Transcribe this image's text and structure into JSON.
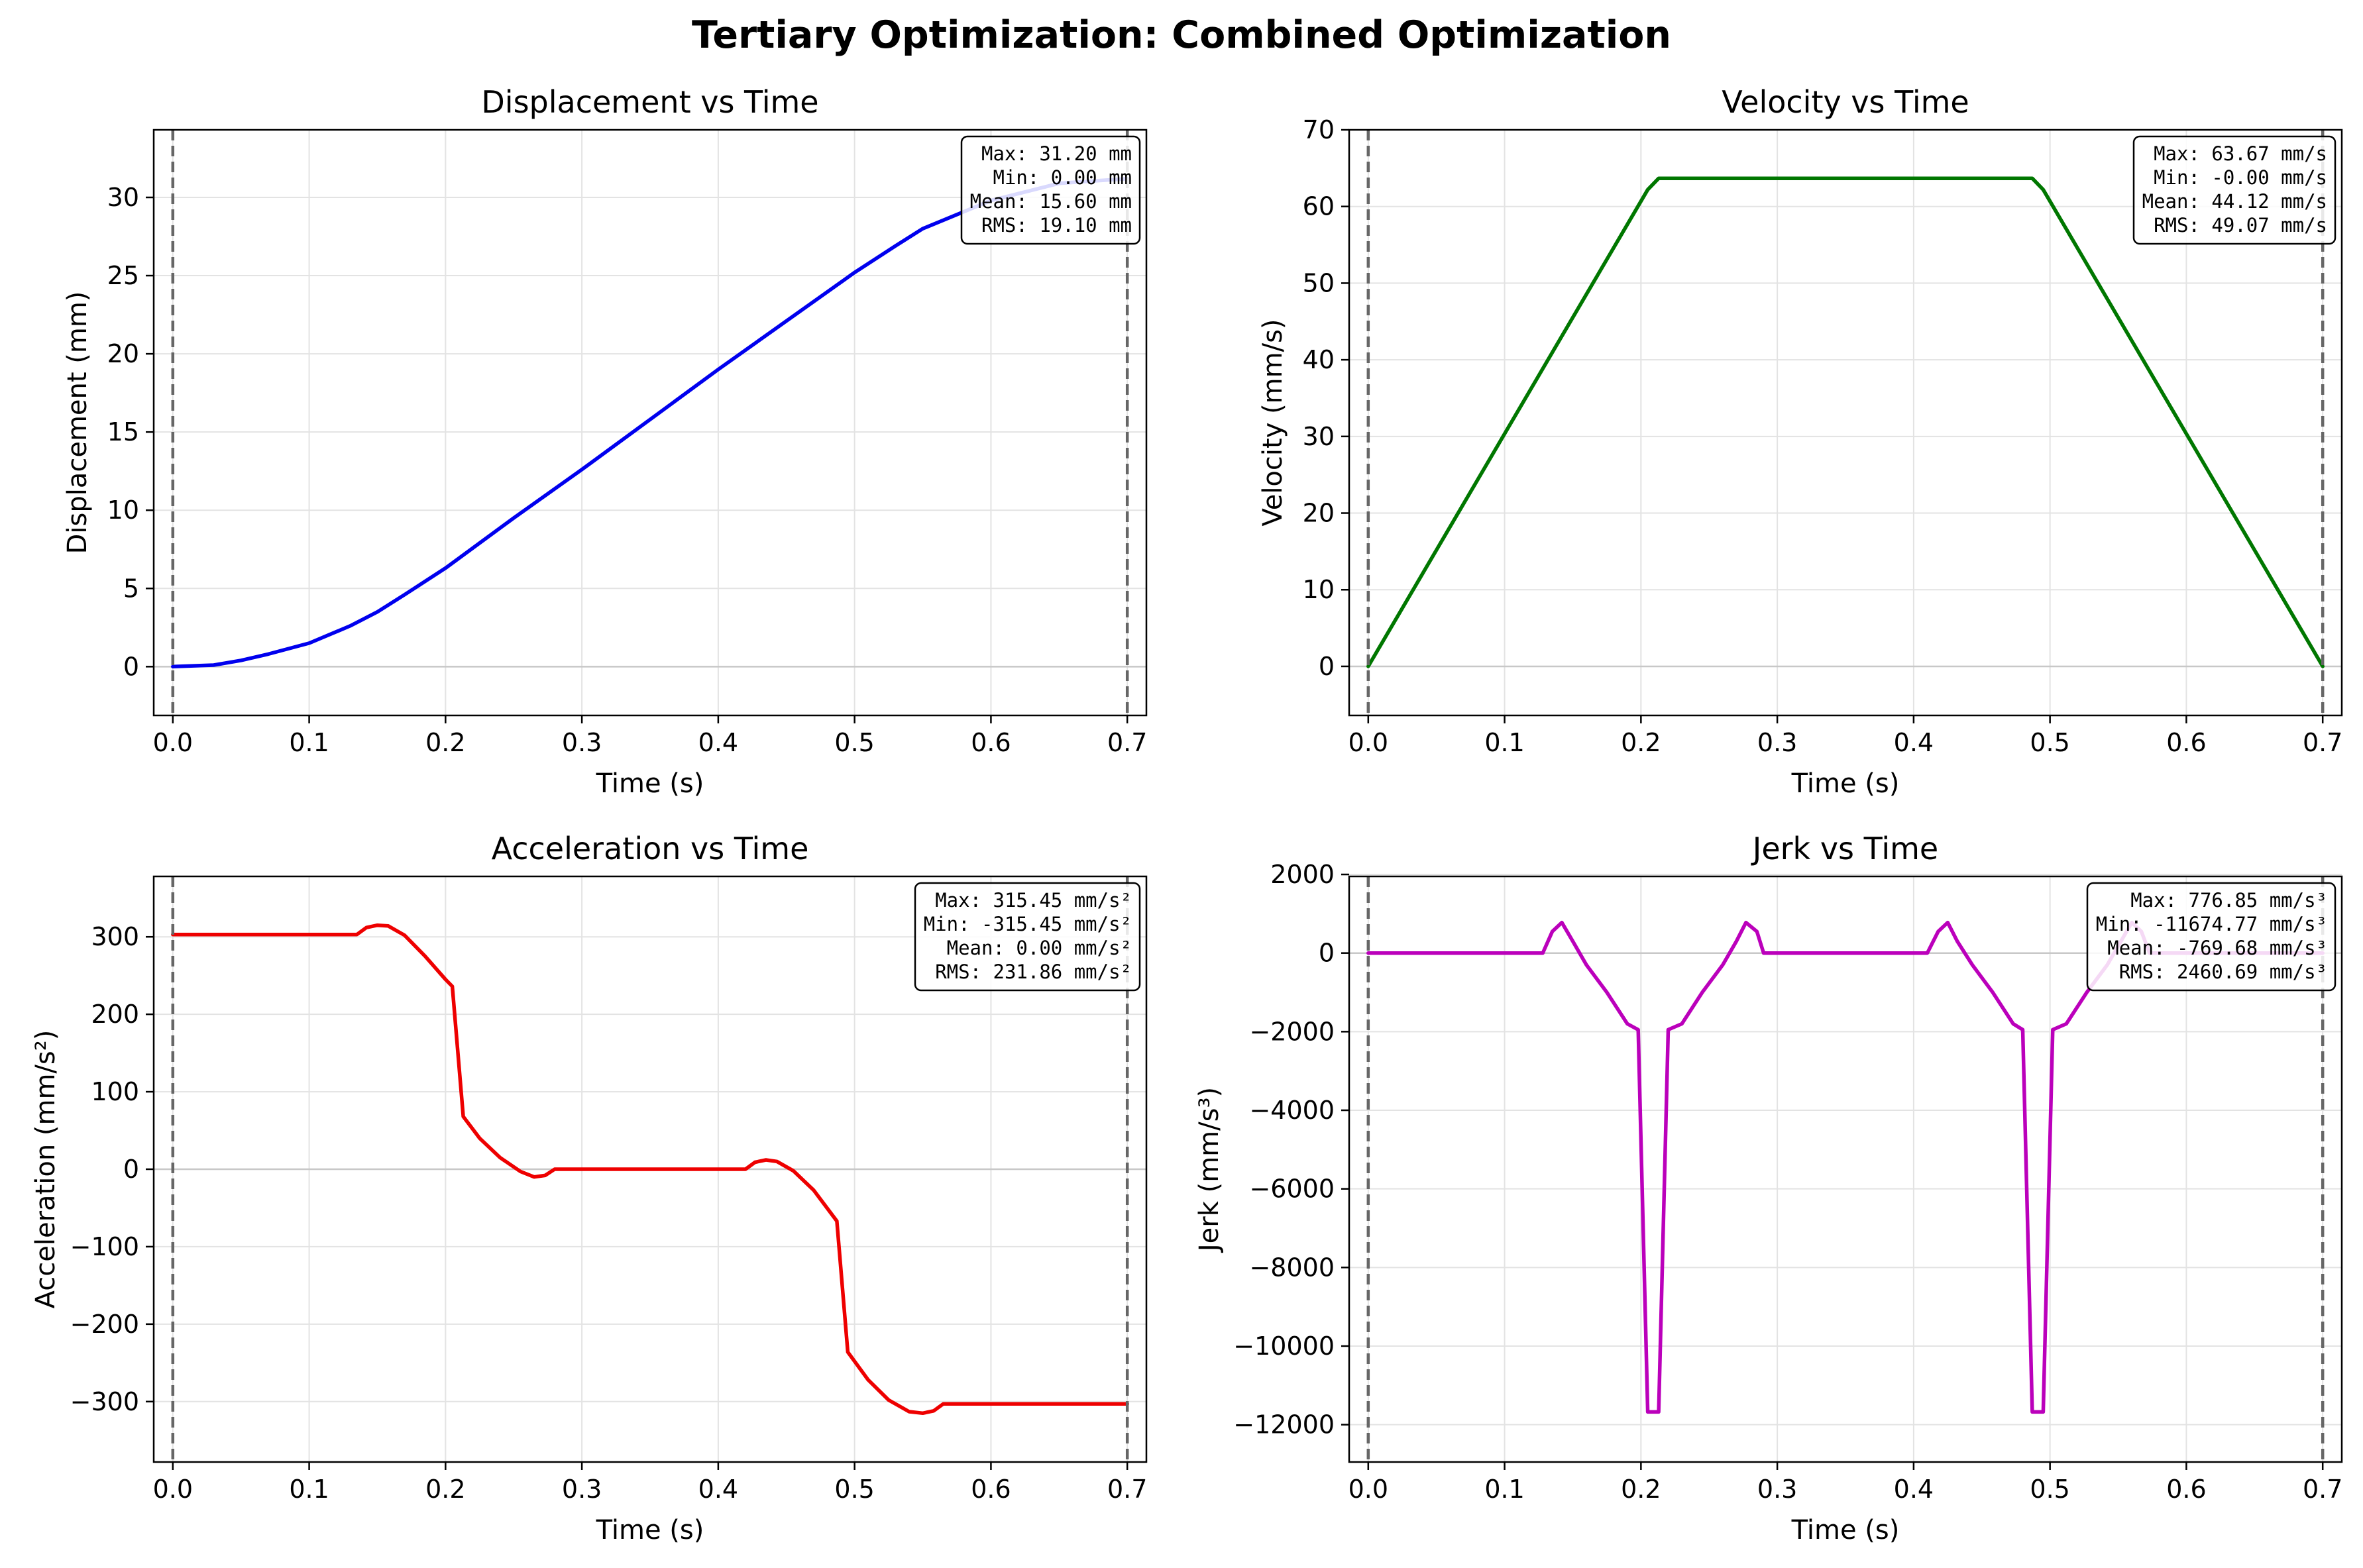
{
  "figure": {
    "title": "Tertiary Optimization: Combined Optimization"
  },
  "chart_data": [
    {
      "type": "line",
      "title": "Displacement vs Time",
      "xlabel": "Time (s)",
      "ylabel": "Displacement (mm)",
      "xlim": [
        -0.014,
        0.714
      ],
      "ylim": [
        -3.12,
        34.32
      ],
      "xticks": [
        0.0,
        0.1,
        0.2,
        0.3,
        0.4,
        0.5,
        0.6,
        0.7
      ],
      "xticklabels": [
        "0.0",
        "0.1",
        "0.2",
        "0.3",
        "0.4",
        "0.5",
        "0.6",
        "0.7"
      ],
      "yticks": [
        0,
        5,
        10,
        15,
        20,
        25,
        30
      ],
      "yticklabels": [
        "0",
        "5",
        "10",
        "15",
        "20",
        "25",
        "30"
      ],
      "grid": true,
      "color": "#0000ee",
      "vlines": [
        0.0,
        0.7
      ],
      "hline": 0,
      "stats": [
        "Max: 31.20 mm",
        "Min: 0.00 mm",
        "Mean: 15.60 mm",
        "RMS: 19.10 mm"
      ],
      "series": [
        {
          "x": [
            0,
            0.03,
            0.05,
            0.07,
            0.1,
            0.13,
            0.15,
            0.17,
            0.2,
            0.25,
            0.3,
            0.35,
            0.4,
            0.45,
            0.5,
            0.53,
            0.55,
            0.6,
            0.65,
            0.7
          ],
          "y": [
            0,
            0.1,
            0.4,
            0.8,
            1.5,
            2.6,
            3.5,
            4.6,
            6.3,
            9.5,
            12.6,
            15.8,
            19.0,
            22.1,
            25.2,
            26.9,
            28.0,
            29.8,
            30.9,
            31.2
          ]
        }
      ]
    },
    {
      "type": "line",
      "title": "Velocity vs Time",
      "xlabel": "Time (s)",
      "ylabel": "Velocity (mm/s)",
      "xlim": [
        -0.014,
        0.714
      ],
      "ylim": [
        -6.4,
        70
      ],
      "xticks": [
        0.0,
        0.1,
        0.2,
        0.3,
        0.4,
        0.5,
        0.6,
        0.7
      ],
      "xticklabels": [
        "0.0",
        "0.1",
        "0.2",
        "0.3",
        "0.4",
        "0.5",
        "0.6",
        "0.7"
      ],
      "yticks": [
        0,
        10,
        20,
        30,
        40,
        50,
        60,
        70
      ],
      "yticklabels": [
        "0",
        "10",
        "20",
        "30",
        "40",
        "50",
        "60",
        "70"
      ],
      "grid": true,
      "color": "#007700",
      "vlines": [
        0.0,
        0.7
      ],
      "hline": 0,
      "stats": [
        "Max: 63.67 mm/s",
        "Min: -0.00 mm/s",
        "Mean: 44.12 mm/s",
        "RMS: 49.07 mm/s"
      ],
      "series": [
        {
          "x": [
            0,
            0.205,
            0.213,
            0.487,
            0.495,
            0.7
          ],
          "y": [
            0,
            62.2,
            63.67,
            63.67,
            62.2,
            0
          ]
        }
      ]
    },
    {
      "type": "line",
      "title": "Acceleration vs Time",
      "xlabel": "Time (s)",
      "ylabel": "Acceleration (mm/s²)",
      "xlim": [
        -0.014,
        0.714
      ],
      "ylim": [
        -378,
        378
      ],
      "xticks": [
        0.0,
        0.1,
        0.2,
        0.3,
        0.4,
        0.5,
        0.6,
        0.7
      ],
      "xticklabels": [
        "0.0",
        "0.1",
        "0.2",
        "0.3",
        "0.4",
        "0.5",
        "0.6",
        "0.7"
      ],
      "yticks": [
        -300,
        -200,
        -100,
        0,
        100,
        200,
        300
      ],
      "yticklabels": [
        "−300",
        "−200",
        "−100",
        "0",
        "100",
        "200",
        "300"
      ],
      "grid": true,
      "color": "#ee0000",
      "vlines": [
        0.0,
        0.7
      ],
      "hline": 0,
      "stats": [
        "Max: 315.45 mm/s²",
        "Min: -315.45 mm/s²",
        "Mean: 0.00 mm/s²",
        "RMS: 231.86 mm/s²"
      ],
      "series": [
        {
          "x": [
            0,
            0.135,
            0.142,
            0.15,
            0.158,
            0.17,
            0.185,
            0.2,
            0.205,
            0.213,
            0.225,
            0.24,
            0.255,
            0.265,
            0.273,
            0.28,
            0.42,
            0.427,
            0.435,
            0.443,
            0.455,
            0.47,
            0.487,
            0.495,
            0.51,
            0.525,
            0.54,
            0.55,
            0.558,
            0.565,
            0.7
          ],
          "y": [
            303,
            303,
            312,
            315,
            314,
            302,
            275,
            245,
            236,
            68,
            40,
            15,
            -3,
            -10,
            -8,
            0,
            0,
            9,
            12,
            10,
            -2,
            -27,
            -67,
            -236,
            -272,
            -298,
            -313,
            -315,
            -312,
            -303,
            -303
          ]
        }
      ]
    },
    {
      "type": "line",
      "title": "Jerk vs Time",
      "xlabel": "Time (s)",
      "ylabel": "Jerk (mm/s³)",
      "xlim": [
        -0.014,
        0.714
      ],
      "ylim": [
        -12950,
        1950
      ],
      "xticks": [
        0.0,
        0.1,
        0.2,
        0.3,
        0.4,
        0.5,
        0.6,
        0.7
      ],
      "xticklabels": [
        "0.0",
        "0.1",
        "0.2",
        "0.3",
        "0.4",
        "0.5",
        "0.6",
        "0.7"
      ],
      "yticks": [
        -12000,
        -10000,
        -8000,
        -6000,
        -4000,
        -2000,
        0,
        2000
      ],
      "yticklabels": [
        "−12000",
        "−10000",
        "−8000",
        "−6000",
        "−4000",
        "−2000",
        "0",
        "2000"
      ],
      "grid": true,
      "color": "#bb00bb",
      "vlines": [
        0.0,
        0.7
      ],
      "hline": 0,
      "stats": [
        "Max: 776.85 mm/s³",
        "Min: -11674.77 mm/s³",
        "Mean: -769.68 mm/s³",
        "RMS: 2460.69 mm/s³"
      ],
      "series": [
        {
          "x": [
            0,
            0.128,
            0.135,
            0.142,
            0.15,
            0.16,
            0.175,
            0.19,
            0.198,
            0.205,
            0.213,
            0.22,
            0.23,
            0.245,
            0.26,
            0.27,
            0.277,
            0.285,
            0.29,
            0.41,
            0.418,
            0.425,
            0.432,
            0.443,
            0.458,
            0.473,
            0.48,
            0.487,
            0.495,
            0.502,
            0.512,
            0.527,
            0.542,
            0.552,
            0.56,
            0.567,
            0.573,
            0.7
          ],
          "y": [
            0,
            0,
            550,
            777,
            300,
            -300,
            -1000,
            -1800,
            -1950,
            -11675,
            -11675,
            -1950,
            -1800,
            -1000,
            -300,
            300,
            777,
            550,
            0,
            0,
            550,
            777,
            300,
            -300,
            -1000,
            -1800,
            -1950,
            -11675,
            -11675,
            -1950,
            -1800,
            -1000,
            -300,
            300,
            777,
            550,
            0,
            0
          ]
        }
      ]
    }
  ]
}
